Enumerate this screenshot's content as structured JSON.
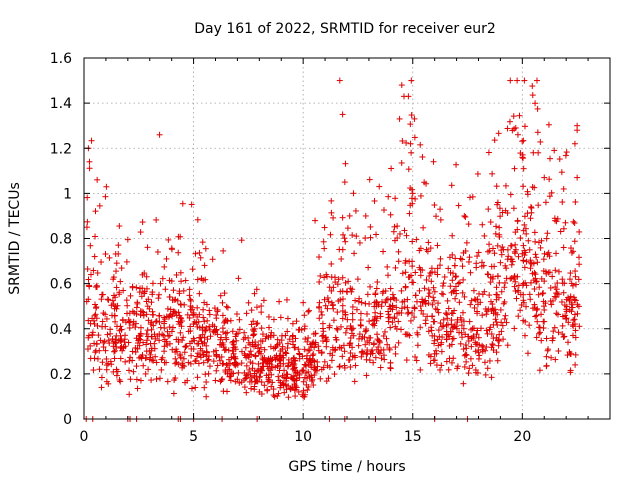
{
  "chart_data": {
    "type": "scatter",
    "title": "Day 161 of 2022, SRMTID for receiver eur2",
    "xlabel": "GPS time / hours",
    "ylabel": "SRMTID / TECUs",
    "xlim": [
      0,
      24
    ],
    "ylim": [
      0,
      1.6
    ],
    "xticks": [
      0,
      5,
      10,
      15,
      20
    ],
    "xtick_labels": [
      "0",
      "5",
      "10",
      "15",
      "20"
    ],
    "yticks": [
      0,
      0.2,
      0.4,
      0.6,
      0.8,
      1.0,
      1.2,
      1.4,
      1.6
    ],
    "ytick_labels": [
      "0",
      "0.2",
      "0.4",
      "0.6",
      "0.8",
      "1",
      "1.2",
      "1.4",
      "1.6"
    ],
    "grid": true,
    "marker": "plus",
    "color": "#e00000",
    "series_name": "SRMTID",
    "seed": 161,
    "density_trend": [
      [
        0.0,
        0.55
      ],
      [
        0.5,
        0.45
      ],
      [
        1.0,
        0.4
      ],
      [
        2.0,
        0.38
      ],
      [
        3.0,
        0.38
      ],
      [
        4.0,
        0.37
      ],
      [
        5.0,
        0.35
      ],
      [
        6.0,
        0.32
      ],
      [
        7.0,
        0.28
      ],
      [
        8.0,
        0.26
      ],
      [
        9.0,
        0.24
      ],
      [
        10.0,
        0.21
      ],
      [
        10.5,
        0.25
      ],
      [
        11.0,
        0.45
      ],
      [
        12.0,
        0.42
      ],
      [
        13.0,
        0.4
      ],
      [
        14.0,
        0.45
      ],
      [
        14.7,
        0.7
      ],
      [
        15.2,
        0.6
      ],
      [
        16.0,
        0.5
      ],
      [
        17.0,
        0.45
      ],
      [
        18.0,
        0.38
      ],
      [
        18.5,
        0.45
      ],
      [
        19.0,
        0.6
      ],
      [
        19.6,
        0.75
      ],
      [
        20.0,
        0.7
      ],
      [
        21.0,
        0.55
      ],
      [
        22.0,
        0.5
      ],
      [
        22.6,
        0.45
      ]
    ],
    "x_extent": [
      0.1,
      22.6
    ],
    "points_count": 2000,
    "highlights": [
      {
        "x": 0.2,
        "y": 1.2
      },
      {
        "x": 0.25,
        "y": 1.14
      },
      {
        "x": 0.6,
        "y": 1.06
      },
      {
        "x": 11.8,
        "y": 1.35
      },
      {
        "x": 11.9,
        "y": 1.05
      },
      {
        "x": 14.5,
        "y": 1.48
      },
      {
        "x": 14.6,
        "y": 1.43
      },
      {
        "x": 14.8,
        "y": 1.43
      },
      {
        "x": 14.4,
        "y": 1.33
      },
      {
        "x": 14.9,
        "y": 1.22
      },
      {
        "x": 15.0,
        "y": 1.0
      },
      {
        "x": 19.7,
        "y": 1.29
      },
      {
        "x": 19.8,
        "y": 1.26
      },
      {
        "x": 20.0,
        "y": 1.16
      },
      {
        "x": 20.5,
        "y": 1.18
      },
      {
        "x": 22.5,
        "y": 1.3
      },
      {
        "x": 22.5,
        "y": 1.28
      },
      {
        "x": 22.4,
        "y": 1.22
      },
      {
        "x": 22.5,
        "y": 1.07
      },
      {
        "x": 21.0,
        "y": 1.07
      },
      {
        "x": 10.0,
        "y": 0.1
      },
      {
        "x": 9.8,
        "y": 0.12
      },
      {
        "x": 0.8,
        "y": 0.14
      },
      {
        "x": 8.0,
        "y": 0.12
      }
    ],
    "zero_points_x": [
      0.1,
      0.4,
      2.0,
      2.1,
      2.4,
      4.3,
      4.4,
      5.0,
      6.3,
      7.9,
      11.2,
      11.9,
      13.3,
      16.0,
      17.5
    ]
  }
}
